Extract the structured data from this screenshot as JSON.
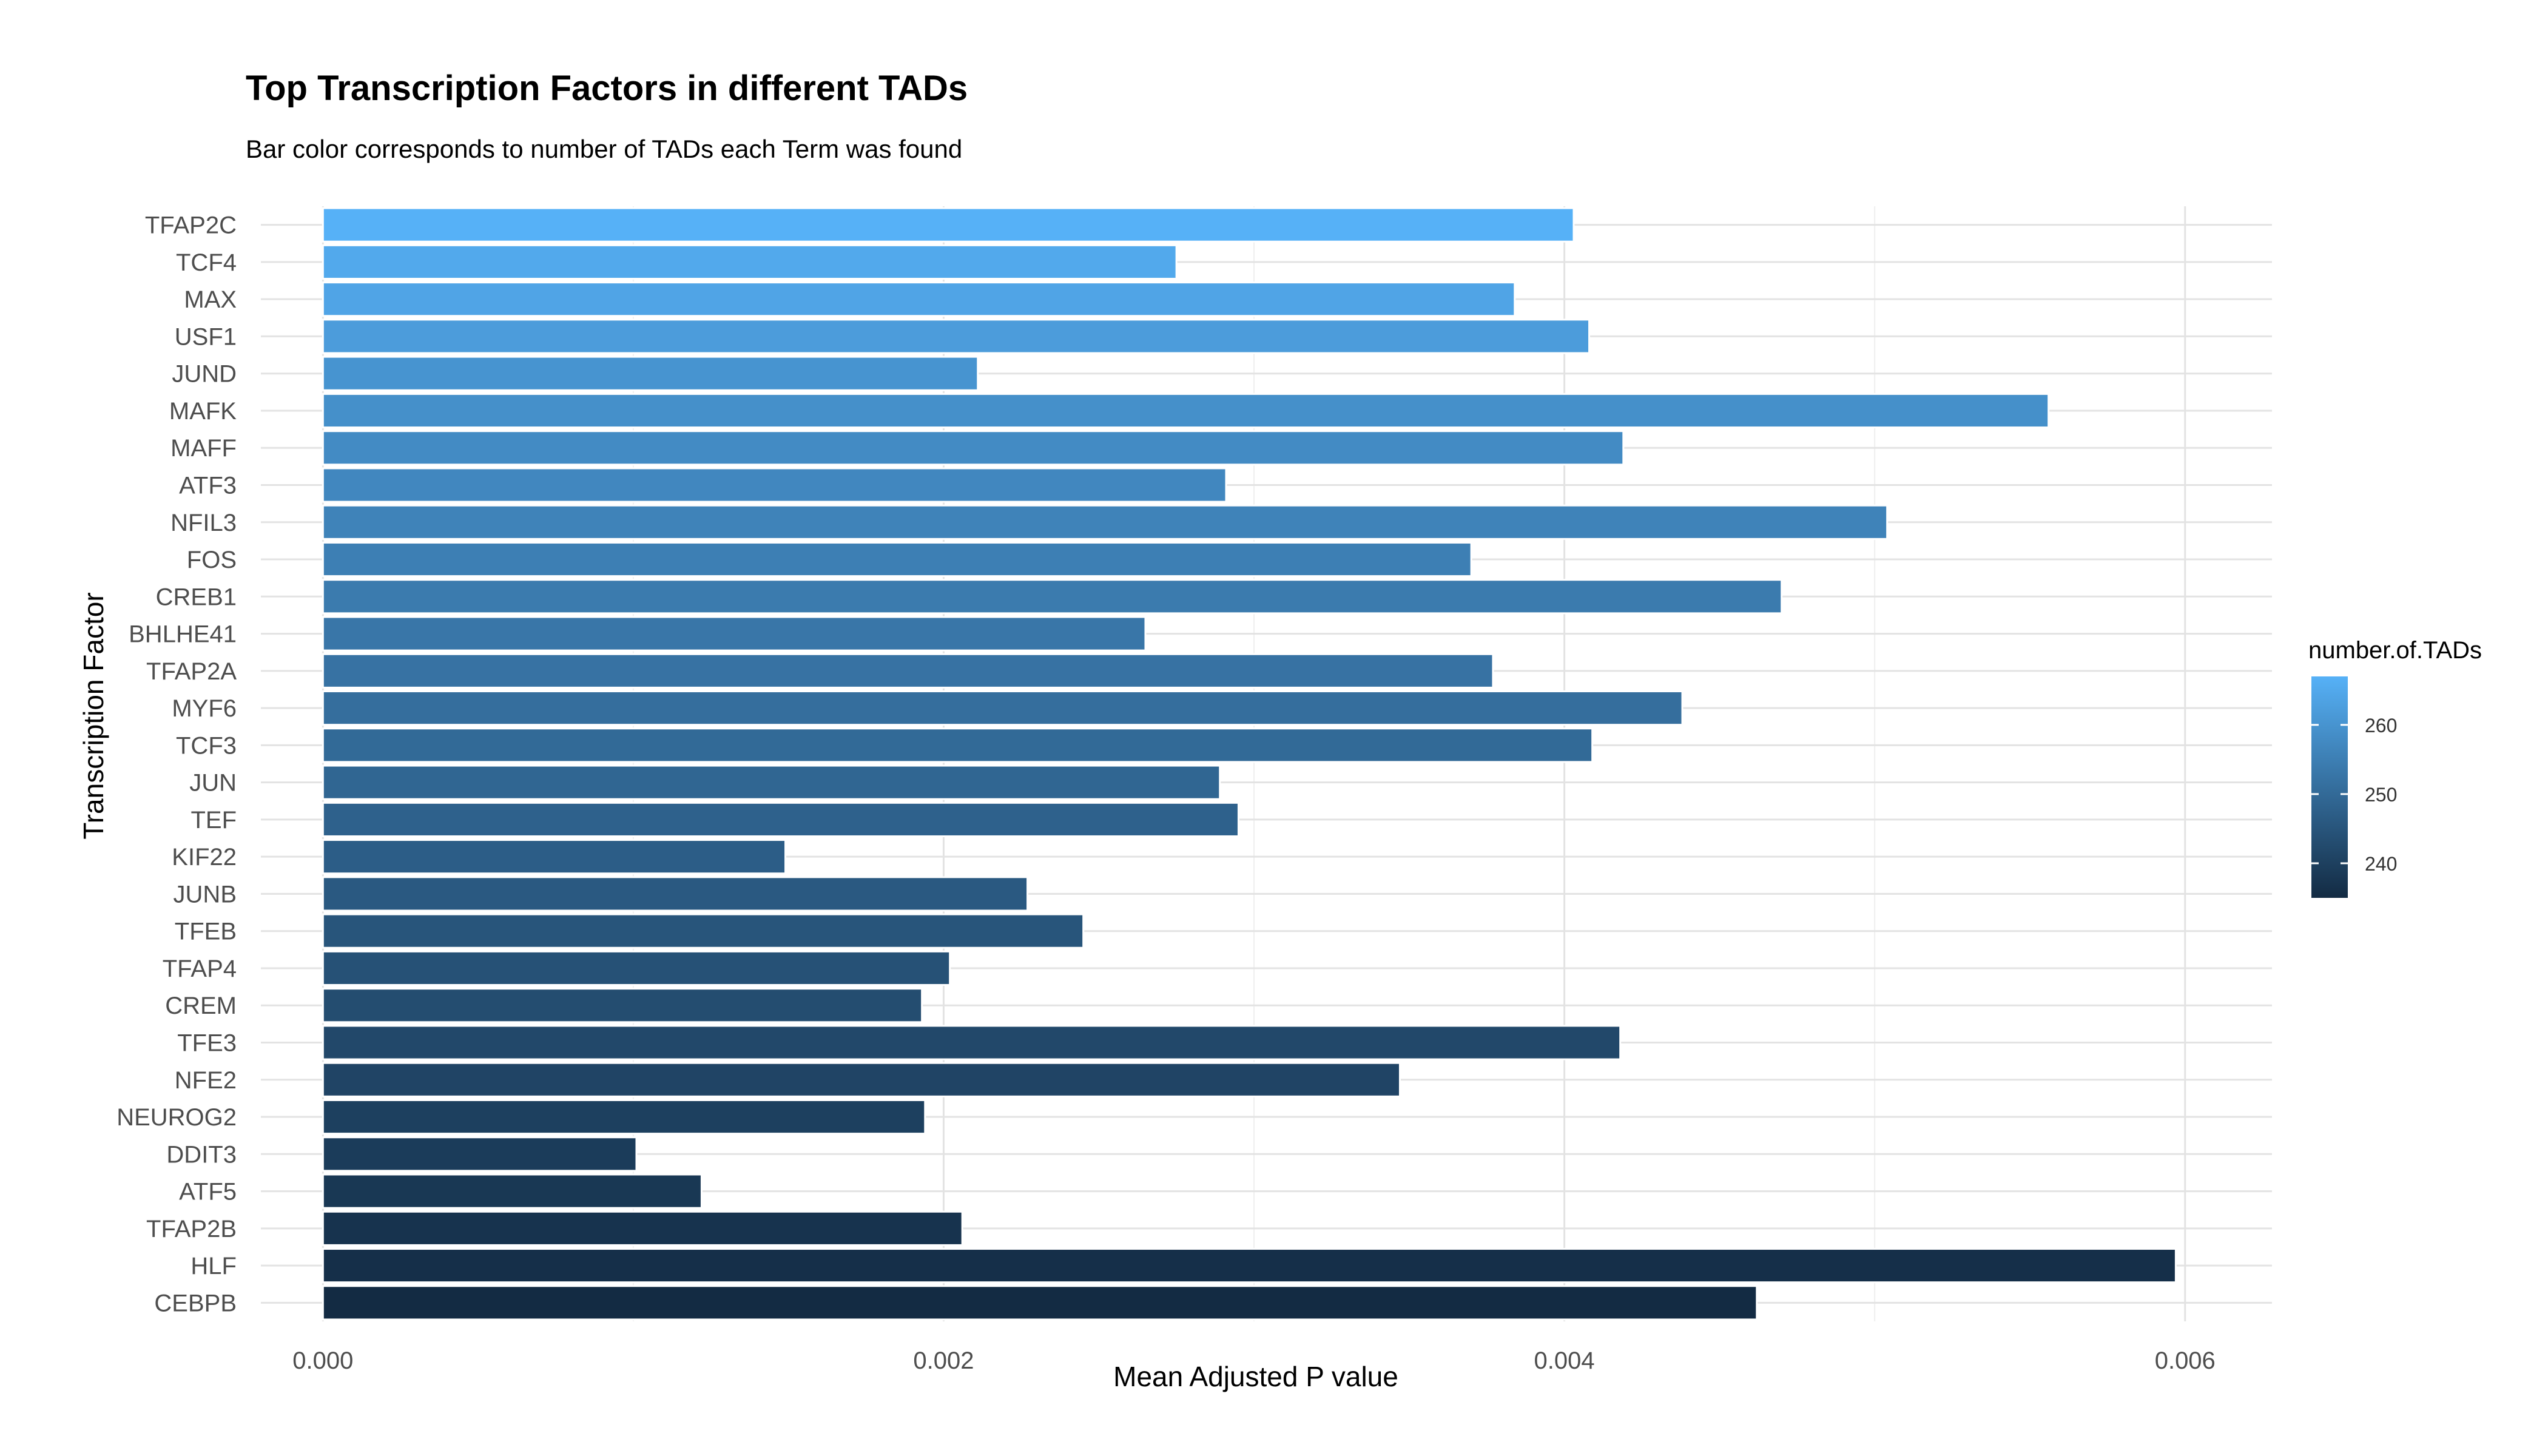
{
  "chart_data": {
    "type": "bar",
    "orientation": "horizontal",
    "title": "Top Transcription Factors in different TADs",
    "subtitle": "Bar color corresponds to number of TADs each Term was found",
    "xlabel": "Mean Adjusted P value",
    "ylabel": "Transcription Factor",
    "xlim": [
      -0.0002,
      0.00628
    ],
    "xticks": [
      0.0,
      0.002,
      0.004,
      0.006
    ],
    "xtick_labels": [
      "0.000",
      "0.002",
      "0.004",
      "0.006"
    ],
    "grid": true,
    "categories": [
      "TFAP2C",
      "TCF4",
      "MAX",
      "USF1",
      "JUND",
      "MAFK",
      "MAFF",
      "ATF3",
      "NFIL3",
      "FOS",
      "CREB1",
      "BHLHE41",
      "TFAP2A",
      "MYF6",
      "TCF3",
      "JUN",
      "TEF",
      "KIF22",
      "JUNB",
      "TFEB",
      "TFAP4",
      "CREM",
      "TFE3",
      "NFE2",
      "NEUROG2",
      "DDIT3",
      "ATF5",
      "TFAP2B",
      "HLF",
      "CEBPB"
    ],
    "values": [
      0.00403,
      0.00275,
      0.00384,
      0.00408,
      0.00211,
      0.00556,
      0.00419,
      0.00291,
      0.00504,
      0.0037,
      0.0047,
      0.00265,
      0.00377,
      0.00438,
      0.00409,
      0.00289,
      0.00295,
      0.00149,
      0.00227,
      0.00245,
      0.00202,
      0.00193,
      0.00418,
      0.00347,
      0.00194,
      0.00101,
      0.00122,
      0.00206,
      0.00597,
      0.00462
    ],
    "number_of_TADs": [
      267,
      265,
      264,
      262,
      260,
      259,
      258,
      257,
      256,
      255,
      254,
      253,
      252,
      251,
      250,
      249,
      248,
      247,
      246,
      245,
      244,
      243,
      242,
      241,
      240,
      239,
      238,
      237,
      236,
      235
    ],
    "legend": {
      "title": "number.of.TADs",
      "position": "right",
      "breaks": [
        240,
        250,
        260
      ],
      "range": [
        235,
        267
      ],
      "color_low": "#132B43",
      "color_high": "#56B1F7"
    }
  }
}
